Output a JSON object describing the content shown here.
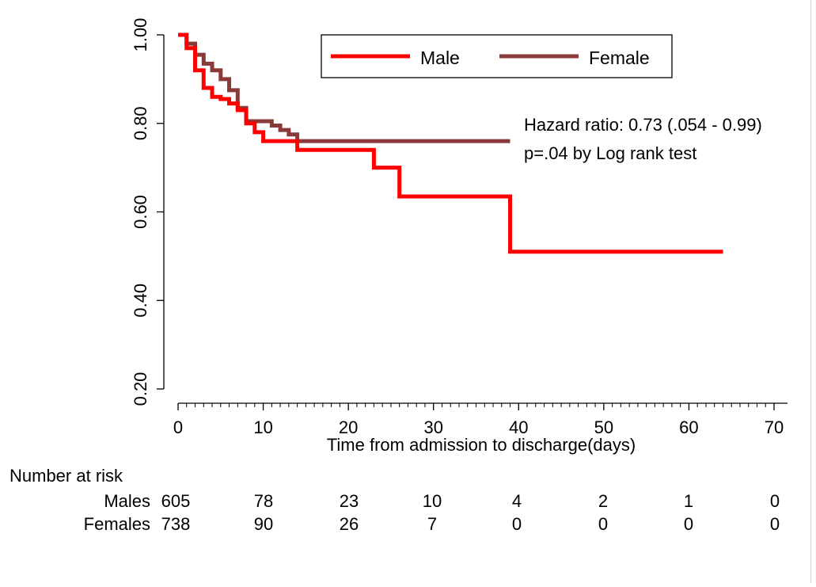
{
  "colors": {
    "male": "#ff0000",
    "female": "#8b3a3a",
    "axis": "#000000",
    "background": "#ffffff"
  },
  "chart_data": {
    "type": "line",
    "step": true,
    "xlabel": "Time from admission to discharge(days)",
    "ylabel": "",
    "xlim": [
      0,
      70
    ],
    "ylim": [
      0.2,
      1.0
    ],
    "xticks": [
      0,
      10,
      20,
      30,
      40,
      50,
      60,
      70
    ],
    "xtick_labels": [
      "0",
      "10",
      "20",
      "30",
      "40",
      "50",
      "60",
      "70"
    ],
    "yticks": [
      0.2,
      0.4,
      0.6,
      0.8,
      1.0
    ],
    "ytick_labels": [
      "0.20",
      "0.40",
      "0.60",
      "0.80",
      "1.00"
    ],
    "grid": false,
    "legend_position": "top-right",
    "series": [
      {
        "name": "Male",
        "color": "#ff0000",
        "x": [
          0,
          1,
          2,
          3,
          4,
          5,
          6,
          7,
          8,
          9,
          10,
          14,
          23,
          26,
          39,
          64
        ],
        "y": [
          1.0,
          0.97,
          0.92,
          0.88,
          0.86,
          0.855,
          0.845,
          0.83,
          0.8,
          0.78,
          0.76,
          0.74,
          0.7,
          0.635,
          0.51,
          0.51
        ]
      },
      {
        "name": "Female",
        "color": "#8b3a3a",
        "x": [
          0,
          1,
          2,
          3,
          4,
          5,
          6,
          7,
          8,
          9,
          10,
          11,
          12,
          13,
          14,
          39
        ],
        "y": [
          1.0,
          0.98,
          0.955,
          0.935,
          0.92,
          0.9,
          0.875,
          0.835,
          0.805,
          0.805,
          0.805,
          0.795,
          0.785,
          0.775,
          0.76,
          0.76
        ]
      }
    ],
    "annotations": [
      "Hazard ratio: 0.73 (.054 - 0.99)",
      "p=.04 by Log rank test"
    ],
    "risk_table": {
      "title": "Number at risk",
      "rows": [
        {
          "label": "Males",
          "values": [
            "605",
            "78",
            "23",
            "10",
            "4",
            "2",
            "1",
            "0"
          ]
        },
        {
          "label": "Females",
          "values": [
            "738",
            "90",
            "26",
            "7",
            "0",
            "0",
            "0",
            "0"
          ]
        }
      ]
    }
  }
}
